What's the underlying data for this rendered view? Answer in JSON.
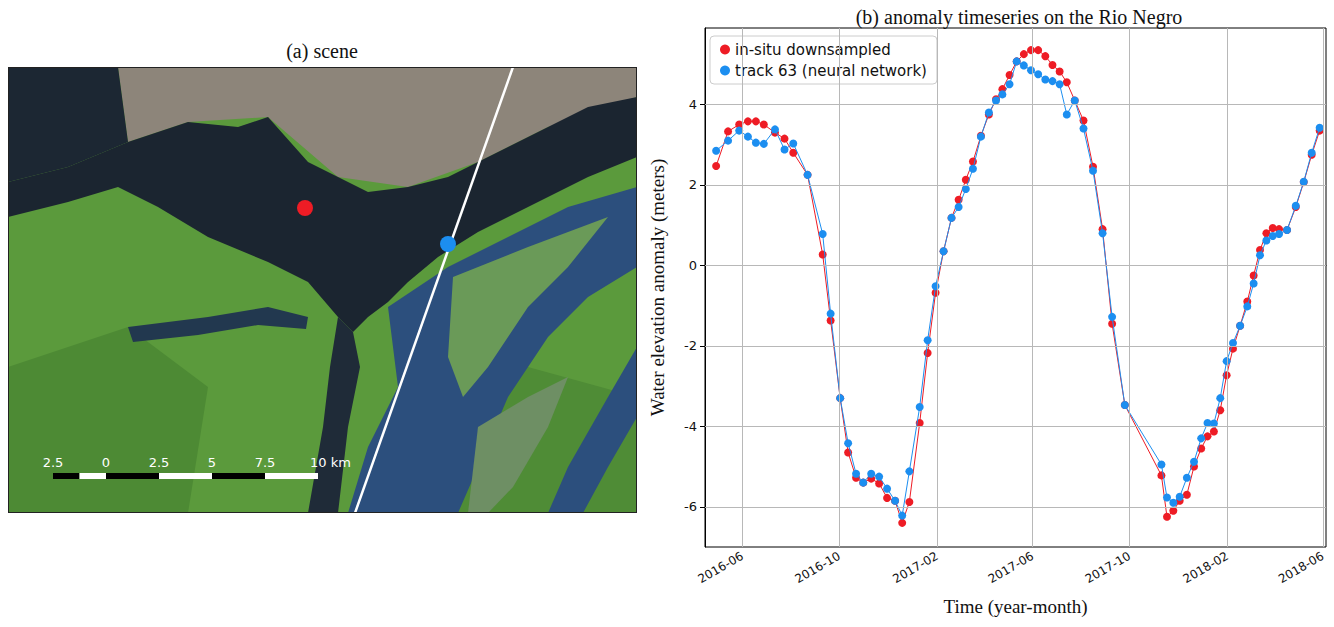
{
  "chart_data": {
    "type": "line",
    "title": "(b) anomaly timeseries on the Rio Negro",
    "x_label": "Time (year-month)",
    "y_label": "Water elevation anomaly (meters)",
    "x": [
      "2016-04-29",
      "2016-05-14",
      "2016-05-28",
      "2016-06-08",
      "2016-06-18",
      "2016-06-28",
      "2016-07-12",
      "2016-07-24",
      "2016-08-04",
      "2016-08-22",
      "2016-09-10",
      "2016-09-20",
      "2016-10-02",
      "2016-10-12",
      "2016-10-22",
      "2016-10-31",
      "2016-11-10",
      "2016-11-20",
      "2016-11-30",
      "2016-12-10",
      "2016-12-19",
      "2016-12-28",
      "2017-01-10",
      "2017-01-20",
      "2017-01-30",
      "2017-02-09",
      "2017-02-19",
      "2017-02-28",
      "2017-03-09",
      "2017-03-18",
      "2017-03-28",
      "2017-04-07",
      "2017-04-16",
      "2017-04-24",
      "2017-05-03",
      "2017-05-12",
      "2017-05-21",
      "2017-05-30",
      "2017-06-08",
      "2017-06-17",
      "2017-06-26",
      "2017-07-05",
      "2017-07-14",
      "2017-07-24",
      "2017-08-04",
      "2017-08-16",
      "2017-08-28",
      "2017-09-09",
      "2017-09-25",
      "2017-11-10",
      "2017-11-17",
      "2017-11-25",
      "2017-12-03",
      "2017-12-12",
      "2017-12-21",
      "2017-12-30",
      "2018-01-07",
      "2018-01-15",
      "2018-01-23",
      "2018-01-31",
      "2018-02-08",
      "2018-02-17",
      "2018-02-26",
      "2018-03-06",
      "2018-03-14",
      "2018-03-22",
      "2018-03-30",
      "2018-04-07",
      "2018-04-17",
      "2018-04-28",
      "2018-05-08",
      "2018-05-18",
      "2018-05-28"
    ],
    "series": [
      {
        "name": "in-situ downsampled",
        "color": "#ee1c25",
        "values": [
          2.47,
          3.33,
          3.5,
          3.58,
          3.58,
          3.5,
          3.3,
          3.15,
          2.8,
          2.25,
          0.27,
          -1.37,
          -3.3,
          -4.65,
          -5.28,
          -5.4,
          -5.3,
          -5.42,
          -5.78,
          -5.85,
          -6.4,
          -5.88,
          -3.92,
          -2.18,
          -0.68,
          0.35,
          1.18,
          1.63,
          2.13,
          2.58,
          3.22,
          3.75,
          4.13,
          4.38,
          4.73,
          5.07,
          5.25,
          5.35,
          5.35,
          5.2,
          4.98,
          4.82,
          4.55,
          4.1,
          3.6,
          2.45,
          0.9,
          -1.45,
          -3.47,
          -5.22,
          -6.25,
          -6.1,
          -5.85,
          -5.7,
          -5.0,
          -4.55,
          -4.25,
          -4.13,
          -3.6,
          -2.73,
          -2.07,
          -1.5,
          -0.9,
          -0.25,
          0.38,
          0.8,
          0.93,
          0.9,
          0.88,
          1.45,
          2.07,
          2.75,
          3.35
        ]
      },
      {
        "name": "track 63 (neural network)",
        "color": "#1c8ef0",
        "values": [
          2.85,
          3.1,
          3.35,
          3.2,
          3.05,
          3.02,
          3.38,
          2.88,
          3.03,
          2.25,
          0.78,
          -1.2,
          -3.3,
          -4.42,
          -5.18,
          -5.4,
          -5.18,
          -5.25,
          -5.55,
          -5.85,
          -6.22,
          -5.12,
          -3.52,
          -1.86,
          -0.52,
          0.35,
          1.18,
          1.45,
          1.9,
          2.4,
          3.2,
          3.8,
          4.1,
          4.25,
          4.5,
          5.07,
          4.97,
          4.85,
          4.75,
          4.62,
          4.58,
          4.5,
          3.75,
          4.1,
          3.4,
          2.35,
          0.8,
          -1.28,
          -3.47,
          -4.95,
          -5.77,
          -5.9,
          -5.75,
          -5.28,
          -4.88,
          -4.3,
          -3.92,
          -3.93,
          -3.3,
          -2.38,
          -1.93,
          -1.5,
          -1.02,
          -0.45,
          0.25,
          0.62,
          0.73,
          0.78,
          0.88,
          1.48,
          2.08,
          2.8,
          3.42
        ]
      }
    ],
    "xlim": [
      "2016-04-15",
      "2018-06-05"
    ],
    "xticks": [
      "2016-06",
      "2016-10",
      "2017-02",
      "2017-06",
      "2017-10",
      "2018-02",
      "2018-06"
    ],
    "ylim": [
      -7,
      5.9
    ],
    "yticks": [
      -6,
      -4,
      -2,
      0,
      2,
      4
    ],
    "grid": true,
    "legend": "upper left",
    "marker": "circle",
    "line_style": "solid"
  },
  "scene": {
    "title": "(a) scene",
    "scale_bar": {
      "labels": [
        "2.5",
        "0",
        "2.5",
        "5",
        "7.5",
        "10 km"
      ]
    }
  }
}
